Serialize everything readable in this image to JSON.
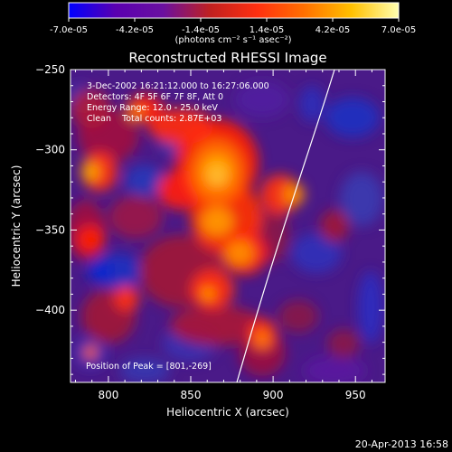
{
  "colorbar": {
    "tick_labels": [
      "-7.0e-05",
      "-4.2e-05",
      "-1.4e-05",
      "1.4e-05",
      "4.2e-05",
      "7.0e-05"
    ],
    "unit_label": "(photons cm⁻² s⁻¹ asec⁻²)",
    "range": [
      -7e-05,
      7e-05
    ],
    "palette": [
      "#0000ff",
      "#5a00b0",
      "#6a10a0",
      "#c02020",
      "#ff3010",
      "#ff7000",
      "#ffc000",
      "#ffffb0"
    ]
  },
  "title": "Reconstructed RHESSI Image",
  "info_lines": [
    "3-Dec-2002 16:21:12.000 to 16:27:06.000",
    "Detectors: 4F 5F 6F 7F 8F, Att 0",
    "Energy Range: 12.0 - 25.0 keV",
    "Clean    Total counts: 2.87E+03"
  ],
  "peak_label": "Position of Peak = [801,-269]",
  "axes": {
    "xlabel": "Heliocentric X (arcsec)",
    "ylabel": "Heliocentric Y (arcsec)",
    "xlim": [
      777,
      968
    ],
    "ylim": [
      -445,
      -250
    ],
    "xticks": [
      800,
      850,
      900,
      950
    ],
    "yticks": [
      -250,
      -300,
      -350,
      -400
    ]
  },
  "footer_date": "20-Apr-2013 16:58"
}
